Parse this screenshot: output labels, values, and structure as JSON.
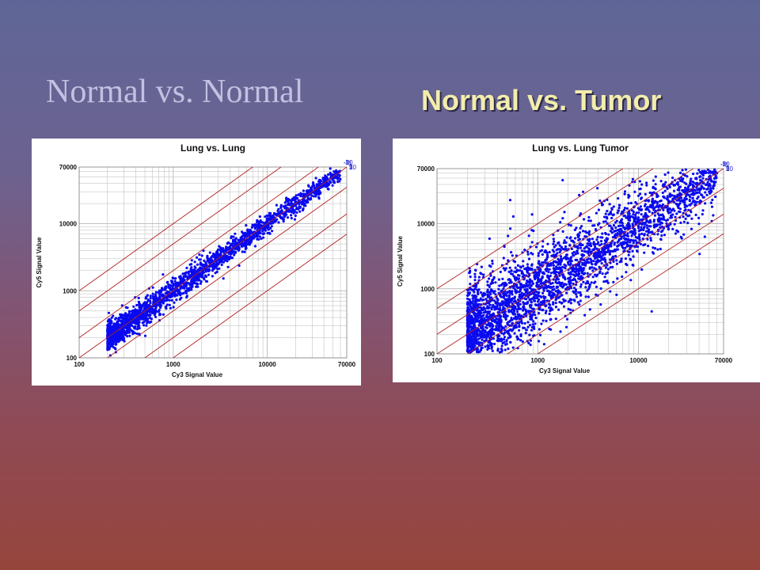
{
  "slide": {
    "title_left": "Normal vs. Normal",
    "title_right": "Normal vs. Tumor"
  },
  "colors": {
    "points": "#0a0af0",
    "ratio_lines": "#b22222",
    "ratio_labels": "#1a1ad0",
    "grid": "#b8b8b8"
  },
  "chart_data": [
    {
      "type": "scatter",
      "title": "Lung vs. Lung",
      "xlabel": "Cy3 Signal Value",
      "ylabel": "Cy5 Signal Value",
      "scale": "log",
      "xlim": [
        100,
        70000
      ],
      "ylim": [
        100,
        70000
      ],
      "x_ticks": [
        "100",
        "1000",
        "10000",
        "70000"
      ],
      "y_ticks": [
        "100",
        "1000",
        "10000",
        "70000"
      ],
      "grid": true,
      "ratio_lines": [
        {
          "ratio": -10,
          "label": "-10"
        },
        {
          "ratio": -5,
          "label": "-5"
        },
        {
          "ratio": -2,
          "label": "-2"
        },
        {
          "ratio": 1,
          "label": "1"
        },
        {
          "ratio": 2,
          "label": "2"
        },
        {
          "ratio": 5,
          "label": "5"
        },
        {
          "ratio": 10,
          "label": "10"
        }
      ],
      "scatter_model": {
        "x_range": [
          200,
          60000
        ],
        "log_ratio_spread": 0.09,
        "n_points": 2200
      }
    },
    {
      "type": "scatter",
      "title": "Lung vs. Lung Tumor",
      "xlabel": "Cy3 Signal Value",
      "ylabel": "Cy5 Signal Value",
      "scale": "log",
      "xlim": [
        100,
        70000
      ],
      "ylim": [
        100,
        70000
      ],
      "x_ticks": [
        "100",
        "1000",
        "10000",
        "70000"
      ],
      "y_ticks": [
        "100",
        "1000",
        "10000",
        "70000"
      ],
      "grid": true,
      "ratio_lines": [
        {
          "ratio": -10,
          "label": "-10"
        },
        {
          "ratio": -5,
          "label": "-5"
        },
        {
          "ratio": -2,
          "label": "-2"
        },
        {
          "ratio": 1,
          "label": "1"
        },
        {
          "ratio": 2,
          "label": "2"
        },
        {
          "ratio": 5,
          "label": "5"
        },
        {
          "ratio": 10,
          "label": "10"
        }
      ],
      "scatter_model": {
        "x_range": [
          200,
          60000
        ],
        "log_ratio_spread": 0.32,
        "n_points": 3200
      }
    }
  ]
}
